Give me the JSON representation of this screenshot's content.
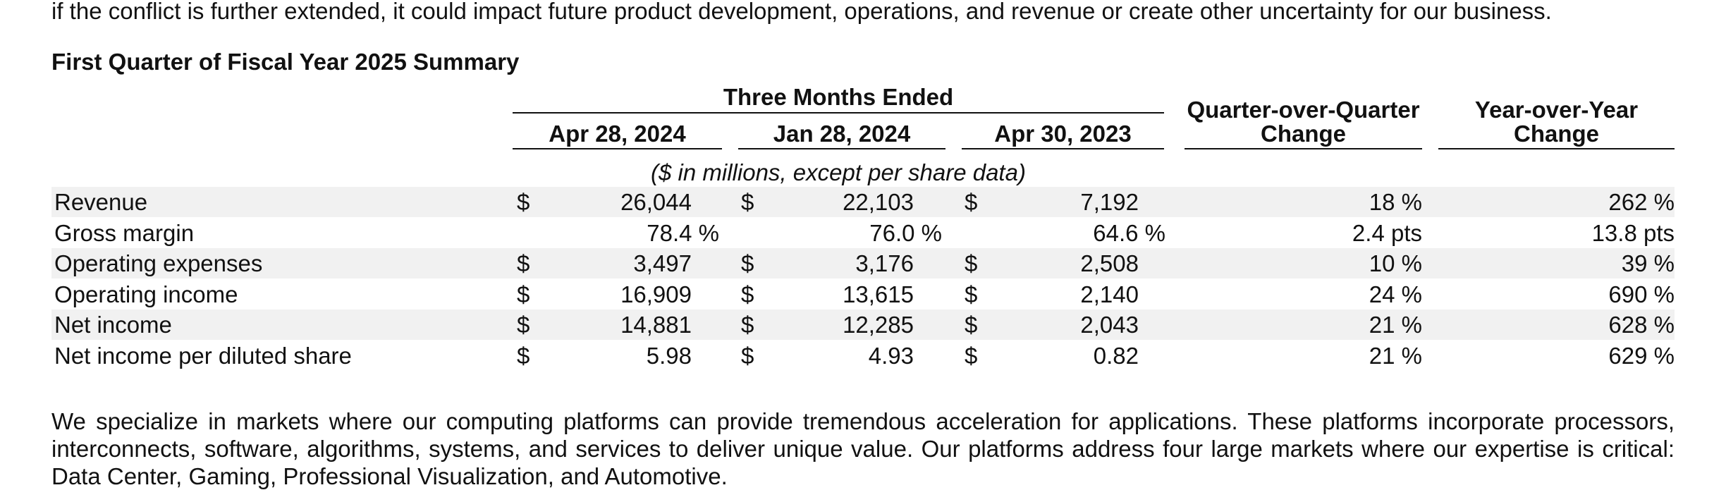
{
  "intro_line": "if the conflict is further extended, it could impact future product development, operations, and revenue or create other uncertainty for our business.",
  "section_title": "First Quarter of Fiscal Year 2025 Summary",
  "table": {
    "group_header": "Three Months Ended",
    "columns": [
      "Apr 28, 2024",
      "Jan 28, 2024",
      "Apr 30, 2023"
    ],
    "qoq_header": [
      "Quarter-over-Quarter",
      "Change"
    ],
    "yoy_header": [
      "Year-over-Year",
      "Change"
    ],
    "units_note": "($ in millions, except per share data)",
    "rows": [
      {
        "label": "Revenue",
        "dollar": "$",
        "values": [
          "26,044",
          "22,103",
          "7,192"
        ],
        "qoq": "18 %",
        "yoy": "262 %"
      },
      {
        "label": "Gross margin",
        "dollar": "",
        "values": [
          "78.4 %",
          "76.0 %",
          "64.6 %"
        ],
        "qoq": "2.4 pts",
        "yoy": "13.8 pts"
      },
      {
        "label": "Operating expenses",
        "dollar": "$",
        "values": [
          "3,497",
          "3,176",
          "2,508"
        ],
        "qoq": "10 %",
        "yoy": "39 %"
      },
      {
        "label": "Operating income",
        "dollar": "$",
        "values": [
          "16,909",
          "13,615",
          "2,140"
        ],
        "qoq": "24 %",
        "yoy": "690 %"
      },
      {
        "label": "Net income",
        "dollar": "$",
        "values": [
          "14,881",
          "12,285",
          "2,043"
        ],
        "qoq": "21 %",
        "yoy": "628 %"
      },
      {
        "label": "Net income per diluted share",
        "dollar": "$",
        "values": [
          "5.98",
          "4.93",
          "0.82"
        ],
        "qoq": "21 %",
        "yoy": "629 %"
      }
    ]
  },
  "closing_paragraph": "We specialize in markets where our computing platforms can provide tremendous acceleration for applications. These platforms incorporate processors, interconnects, software, algorithms, systems, and services to deliver unique value. Our platforms address four large markets where our expertise is critical: Data Center, Gaming, Professional Visualization, and Automotive."
}
